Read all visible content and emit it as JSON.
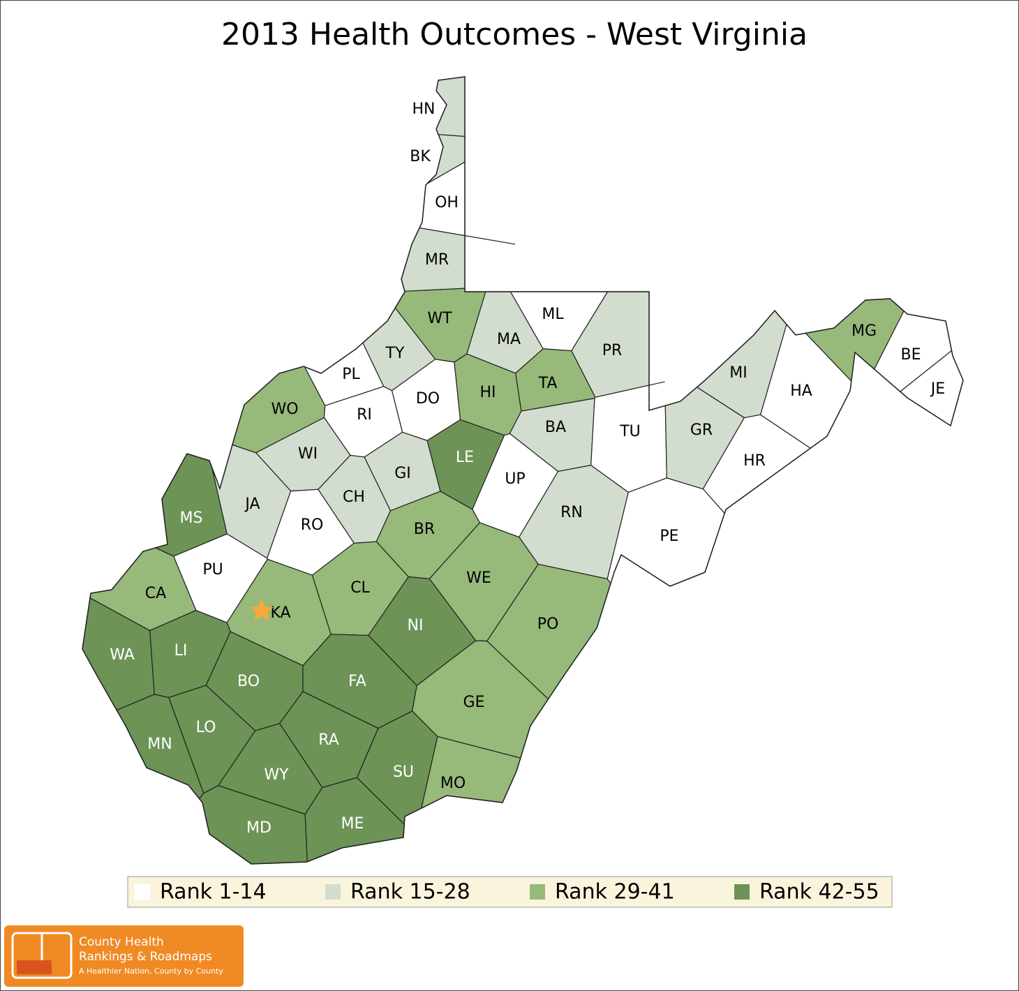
{
  "title": "2013 Health Outcomes - West Virginia",
  "legend": [
    {
      "label": "Rank 1-14",
      "color": "#ffffff"
    },
    {
      "label": "Rank 15-28",
      "color": "#d2ddd0"
    },
    {
      "label": "Rank 29-41",
      "color": "#97b97a"
    },
    {
      "label": "Rank 42-55",
      "color": "#6d9356"
    }
  ],
  "counties": [
    {
      "label": "HN",
      "color": "#d2ddd0"
    },
    {
      "label": "BK",
      "color": "#d2ddd0"
    },
    {
      "label": "OH",
      "color": "#ffffff"
    },
    {
      "label": "MR",
      "color": "#d2ddd0"
    },
    {
      "label": "WT",
      "color": "#97b97a"
    },
    {
      "label": "ML",
      "color": "#ffffff"
    },
    {
      "label": "PR",
      "color": "#d2ddd0"
    },
    {
      "label": "MA",
      "color": "#d2ddd0"
    },
    {
      "label": "TY",
      "color": "#d2ddd0"
    },
    {
      "label": "PL",
      "color": "#ffffff"
    },
    {
      "label": "DO",
      "color": "#ffffff"
    },
    {
      "label": "HI",
      "color": "#97b97a"
    },
    {
      "label": "TA",
      "color": "#97b97a"
    },
    {
      "label": "WO",
      "color": "#97b97a"
    },
    {
      "label": "RI",
      "color": "#ffffff"
    },
    {
      "label": "BA",
      "color": "#d2ddd0"
    },
    {
      "label": "TU",
      "color": "#ffffff"
    },
    {
      "label": "GR",
      "color": "#d2ddd0"
    },
    {
      "label": "MI",
      "color": "#d2ddd0"
    },
    {
      "label": "HA",
      "color": "#ffffff"
    },
    {
      "label": "MG",
      "color": "#97b97a"
    },
    {
      "label": "BE",
      "color": "#ffffff"
    },
    {
      "label": "JE",
      "color": "#ffffff"
    },
    {
      "label": "HR",
      "color": "#ffffff"
    },
    {
      "label": "WI",
      "color": "#d2ddd0"
    },
    {
      "label": "GI",
      "color": "#d2ddd0"
    },
    {
      "label": "LE",
      "color": "#6d9356"
    },
    {
      "label": "UP",
      "color": "#ffffff"
    },
    {
      "label": "CH",
      "color": "#d2ddd0"
    },
    {
      "label": "MS",
      "color": "#6d9356"
    },
    {
      "label": "JA",
      "color": "#d2ddd0"
    },
    {
      "label": "RO",
      "color": "#ffffff"
    },
    {
      "label": "RN",
      "color": "#d2ddd0"
    },
    {
      "label": "PE",
      "color": "#ffffff"
    },
    {
      "label": "BR",
      "color": "#97b97a"
    },
    {
      "label": "PU",
      "color": "#ffffff"
    },
    {
      "label": "CA",
      "color": "#97b97a"
    },
    {
      "label": "CL",
      "color": "#97b97a"
    },
    {
      "label": "WE",
      "color": "#97b97a"
    },
    {
      "label": "KA",
      "color": "#97b97a"
    },
    {
      "label": "NI",
      "color": "#6d9356"
    },
    {
      "label": "PO",
      "color": "#97b97a"
    },
    {
      "label": "WA",
      "color": "#6d9356"
    },
    {
      "label": "LI",
      "color": "#6d9356"
    },
    {
      "label": "BO",
      "color": "#6d9356"
    },
    {
      "label": "FA",
      "color": "#6d9356"
    },
    {
      "label": "GE",
      "color": "#97b97a"
    },
    {
      "label": "LO",
      "color": "#6d9356"
    },
    {
      "label": "MN",
      "color": "#6d9356"
    },
    {
      "label": "RA",
      "color": "#6d9356"
    },
    {
      "label": "SU",
      "color": "#6d9356"
    },
    {
      "label": "WY",
      "color": "#6d9356"
    },
    {
      "label": "MO",
      "color": "#97b97a"
    },
    {
      "label": "MD",
      "color": "#6d9356"
    },
    {
      "label": "ME",
      "color": "#6d9356"
    }
  ],
  "logo": {
    "line1": "County Health",
    "line2": "Rankings & Roadmaps",
    "tagline": "A Healthier Nation, County by County"
  }
}
